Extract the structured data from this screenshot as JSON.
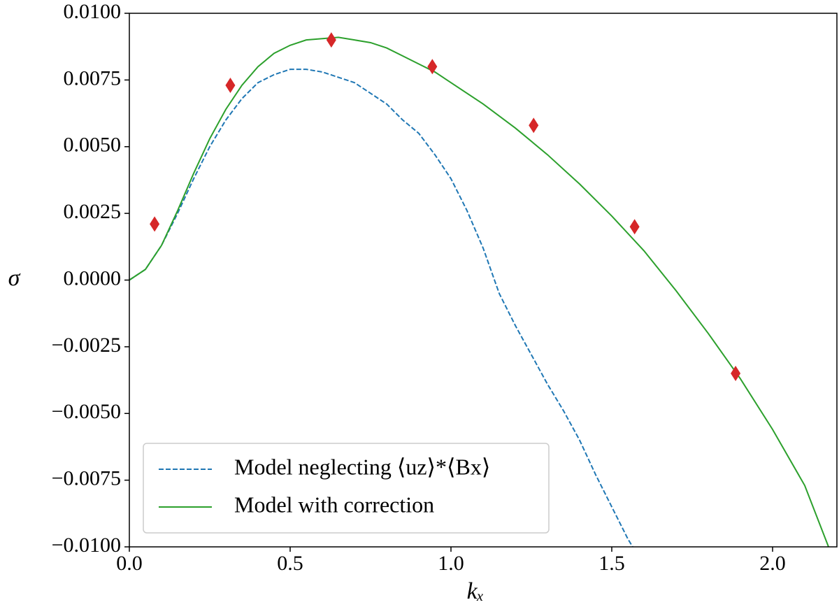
{
  "chart_data": {
    "type": "line",
    "xlabel": "kₓ",
    "ylabel": "σ",
    "xlim": [
      0,
      2.2
    ],
    "ylim": [
      -0.01,
      0.01
    ],
    "xticks": [
      {
        "value": 0,
        "label": "0.0"
      },
      0.5,
      {
        "value": 1,
        "label": "1.0"
      },
      1.5,
      {
        "value": 2,
        "label": "2.0"
      }
    ],
    "yticks": [
      {
        "value": -0.01,
        "label": "−0.0100"
      },
      {
        "value": -0.0075,
        "label": "−0.0075"
      },
      {
        "value": -0.005,
        "label": "−0.0050"
      },
      {
        "value": -0.0025,
        "label": "−0.0025"
      },
      {
        "value": 0,
        "label": "0.0000"
      },
      {
        "value": 0.0025,
        "label": "0.0025"
      },
      {
        "value": 0.005,
        "label": "0.0050"
      },
      {
        "value": 0.0075,
        "label": "0.0075"
      },
      {
        "value": 0.01,
        "label": "0.0100"
      }
    ],
    "legend": "lower left",
    "series": [
      {
        "name": "Model neglecting ⟨uz⟩*⟨Bx⟩",
        "color": "#1f77b4",
        "style": "dashed",
        "x": [
          0,
          0.05,
          0.1,
          0.15,
          0.2,
          0.25,
          0.3,
          0.35,
          0.4,
          0.45,
          0.5,
          0.55,
          0.6,
          0.65,
          0.7,
          0.75,
          0.8,
          0.85,
          0.9,
          0.95,
          1.0,
          1.05,
          1.1,
          1.15,
          1.2,
          1.25,
          1.3,
          1.35,
          1.4,
          1.45,
          1.5,
          1.55,
          1.565
        ],
        "values": [
          0,
          0.0004,
          0.0013,
          0.0025,
          0.0038,
          0.005,
          0.006,
          0.0068,
          0.0074,
          0.0077,
          0.0079,
          0.0079,
          0.0078,
          0.0076,
          0.0074,
          0.007,
          0.0066,
          0.006,
          0.0055,
          0.0047,
          0.0038,
          0.0026,
          0.0012,
          -0.0005,
          -0.0017,
          -0.0028,
          -0.0039,
          -0.0049,
          -0.006,
          -0.0073,
          -0.0085,
          -0.0097,
          -0.01
        ]
      },
      {
        "name": "Model with correction",
        "color": "#2ca02c",
        "style": "solid",
        "x": [
          0,
          0.05,
          0.1,
          0.15,
          0.2,
          0.25,
          0.3,
          0.35,
          0.4,
          0.45,
          0.5,
          0.55,
          0.6,
          0.65,
          0.7,
          0.75,
          0.8,
          0.85,
          0.9,
          0.95,
          1.0,
          1.1,
          1.2,
          1.3,
          1.4,
          1.5,
          1.6,
          1.7,
          1.8,
          1.9,
          2.0,
          2.1,
          2.174
        ],
        "values": [
          0,
          0.0004,
          0.0013,
          0.0026,
          0.004,
          0.0053,
          0.0064,
          0.0073,
          0.008,
          0.0085,
          0.0088,
          0.009,
          0.00905,
          0.0091,
          0.009,
          0.0089,
          0.0087,
          0.0084,
          0.0081,
          0.0078,
          0.0074,
          0.0066,
          0.0057,
          0.0047,
          0.0036,
          0.0024,
          0.0011,
          -0.0004,
          -0.002,
          -0.0037,
          -0.0056,
          -0.0077,
          -0.01
        ]
      },
      {
        "color": "#d62728",
        "style": "diamond",
        "x": [
          0.0785,
          0.314,
          0.628,
          0.942,
          1.257,
          1.571,
          1.885
        ],
        "values": [
          0.0021,
          0.0073,
          0.009,
          0.008,
          0.0058,
          0.002,
          -0.0035
        ]
      }
    ]
  }
}
